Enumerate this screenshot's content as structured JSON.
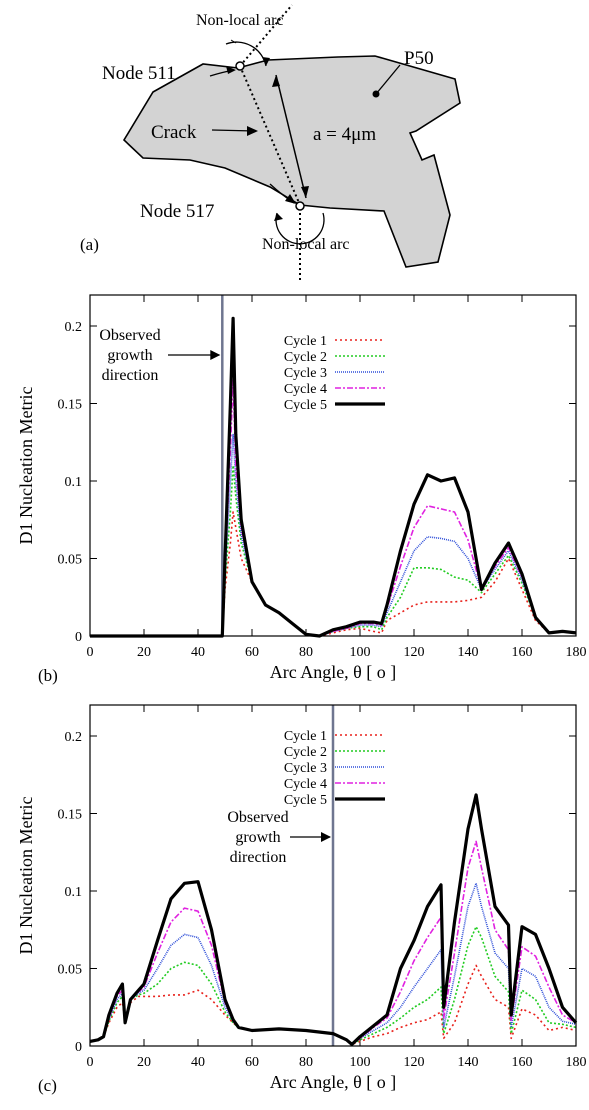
{
  "panel_a": {
    "label": "(a)",
    "node_top": "Node 511",
    "node_bottom": "Node 517",
    "arc_top": "Non-local arc",
    "arc_bottom": "Non-local arc",
    "crack": "Crack",
    "grain": "P50",
    "length": "a = 4μm"
  },
  "colors": {
    "cycle1": "#e8211b",
    "cycle2": "#22cc22",
    "cycle3": "#2f4fd8",
    "cycle4": "#e022e0",
    "cycle5": "#000000",
    "marker": "#6f7690",
    "grain_fill": "#d3d3d3"
  },
  "chart_data": [
    {
      "panel_label": "(b)",
      "type": "line",
      "xlabel": "Arc Angle, θ [ o ]",
      "ylabel": "D1 Nucleation Metric",
      "xlim": [
        0,
        180
      ],
      "ylim": [
        0,
        0.22
      ],
      "xticks": [
        "0",
        "20",
        "40",
        "60",
        "80",
        "100",
        "120",
        "140",
        "160",
        "180"
      ],
      "yticks": [
        "0",
        "0.05",
        "0.1",
        "0.15",
        "0.2"
      ],
      "annotation": [
        "Observed",
        "growth",
        "direction"
      ],
      "marker_x": 49,
      "legend": [
        "Cycle 1",
        "Cycle 2",
        "Cycle 3",
        "Cycle 4",
        "Cycle 5"
      ],
      "series": [
        {
          "name": "Cycle 1",
          "x": [
            0,
            49,
            50,
            52,
            53,
            54,
            56,
            60,
            65,
            70,
            75,
            80,
            85,
            90,
            95,
            100,
            105,
            108,
            110,
            115,
            120,
            125,
            130,
            135,
            140,
            145,
            150,
            155,
            160,
            165,
            170,
            175,
            180
          ],
          "y": [
            0,
            0,
            0.03,
            0.06,
            0.08,
            0.07,
            0.05,
            0.035,
            0.02,
            0.015,
            0.008,
            0.001,
            0,
            0.002,
            0.004,
            0.005,
            0.003,
            0.002,
            0.01,
            0.015,
            0.02,
            0.022,
            0.022,
            0.022,
            0.023,
            0.025,
            0.035,
            0.05,
            0.03,
            0.01,
            0.002,
            0.003,
            0.002
          ]
        },
        {
          "name": "Cycle 2",
          "x": [
            0,
            49,
            50,
            52,
            53,
            54,
            56,
            60,
            65,
            70,
            75,
            80,
            85,
            90,
            95,
            100,
            105,
            108,
            110,
            115,
            120,
            125,
            130,
            135,
            140,
            145,
            150,
            155,
            160,
            165,
            170,
            175,
            180
          ],
          "y": [
            0,
            0,
            0.035,
            0.08,
            0.11,
            0.09,
            0.06,
            0.035,
            0.02,
            0.015,
            0.008,
            0.001,
            0,
            0.003,
            0.005,
            0.006,
            0.006,
            0.004,
            0.012,
            0.025,
            0.044,
            0.044,
            0.043,
            0.038,
            0.036,
            0.028,
            0.04,
            0.052,
            0.034,
            0.012,
            0.002,
            0.003,
            0.002
          ]
        },
        {
          "name": "Cycle 3",
          "x": [
            0,
            49,
            50,
            52,
            53,
            54,
            56,
            60,
            65,
            70,
            75,
            80,
            85,
            90,
            95,
            100,
            105,
            108,
            110,
            115,
            120,
            125,
            130,
            135,
            140,
            145,
            150,
            155,
            160,
            165,
            170,
            175,
            180
          ],
          "y": [
            0,
            0,
            0.04,
            0.1,
            0.13,
            0.1,
            0.065,
            0.035,
            0.02,
            0.015,
            0.008,
            0.001,
            0,
            0.003,
            0.005,
            0.007,
            0.007,
            0.006,
            0.015,
            0.035,
            0.055,
            0.064,
            0.063,
            0.061,
            0.05,
            0.03,
            0.043,
            0.055,
            0.036,
            0.012,
            0.002,
            0.003,
            0.002
          ]
        },
        {
          "name": "Cycle 4",
          "x": [
            0,
            49,
            50,
            52,
            53,
            54,
            56,
            60,
            65,
            70,
            75,
            80,
            85,
            90,
            95,
            100,
            105,
            108,
            110,
            115,
            120,
            125,
            130,
            135,
            140,
            145,
            150,
            155,
            160,
            165,
            170,
            175,
            180
          ],
          "y": [
            0,
            0,
            0.045,
            0.12,
            0.165,
            0.11,
            0.07,
            0.035,
            0.02,
            0.015,
            0.008,
            0.001,
            0,
            0.003,
            0.005,
            0.008,
            0.008,
            0.007,
            0.018,
            0.045,
            0.07,
            0.084,
            0.082,
            0.08,
            0.062,
            0.03,
            0.045,
            0.057,
            0.038,
            0.012,
            0.002,
            0.003,
            0.002
          ]
        },
        {
          "name": "Cycle 5",
          "x": [
            0,
            49,
            50,
            52,
            53,
            54,
            56,
            60,
            65,
            70,
            75,
            80,
            85,
            90,
            95,
            100,
            105,
            108,
            110,
            115,
            120,
            125,
            130,
            135,
            140,
            145,
            150,
            155,
            160,
            165,
            170,
            175,
            180
          ],
          "y": [
            0,
            0,
            0.05,
            0.15,
            0.205,
            0.13,
            0.075,
            0.035,
            0.02,
            0.015,
            0.008,
            0.001,
            0,
            0.004,
            0.006,
            0.009,
            0.009,
            0.008,
            0.02,
            0.055,
            0.085,
            0.104,
            0.1,
            0.102,
            0.08,
            0.03,
            0.047,
            0.06,
            0.04,
            0.012,
            0.002,
            0.003,
            0.002
          ]
        }
      ]
    },
    {
      "panel_label": "(c)",
      "type": "line",
      "xlabel": "Arc Angle, θ [ o ]",
      "ylabel": "D1 Nucleation Metric",
      "xlim": [
        0,
        180
      ],
      "ylim": [
        0,
        0.22
      ],
      "xticks": [
        "0",
        "20",
        "40",
        "60",
        "80",
        "100",
        "120",
        "140",
        "160",
        "180"
      ],
      "yticks": [
        "0",
        "0.05",
        "0.1",
        "0.15",
        "0.2"
      ],
      "annotation": [
        "Observed",
        "growth",
        "direction"
      ],
      "marker_x": 90,
      "legend": [
        "Cycle 1",
        "Cycle 2",
        "Cycle 3",
        "Cycle 4",
        "Cycle 5"
      ],
      "series": [
        {
          "name": "Cycle 1",
          "x": [
            0,
            3,
            5,
            7,
            10,
            12,
            13,
            15,
            18,
            20,
            25,
            30,
            35,
            40,
            45,
            50,
            53,
            55,
            60,
            70,
            80,
            90,
            95,
            97,
            100,
            105,
            110,
            115,
            120,
            125,
            130,
            131,
            135,
            140,
            143,
            145,
            150,
            155,
            156,
            160,
            165,
            170,
            175,
            180
          ],
          "y": [
            0.003,
            0.004,
            0.006,
            0.015,
            0.025,
            0.028,
            0.015,
            0.028,
            0.032,
            0.032,
            0.032,
            0.033,
            0.033,
            0.036,
            0.03,
            0.02,
            0.015,
            0.012,
            0.01,
            0.011,
            0.01,
            0.008,
            0.004,
            0.001,
            0.003,
            0.006,
            0.008,
            0.012,
            0.015,
            0.017,
            0.022,
            0.005,
            0.015,
            0.04,
            0.052,
            0.045,
            0.03,
            0.025,
            0.005,
            0.024,
            0.02,
            0.01,
            0.012,
            0.01
          ]
        },
        {
          "name": "Cycle 2",
          "x": [
            0,
            3,
            5,
            7,
            10,
            12,
            13,
            15,
            18,
            20,
            25,
            30,
            35,
            40,
            45,
            50,
            53,
            55,
            60,
            70,
            80,
            90,
            95,
            97,
            100,
            105,
            110,
            115,
            120,
            125,
            130,
            131,
            135,
            140,
            143,
            145,
            150,
            155,
            156,
            160,
            165,
            170,
            175,
            180
          ],
          "y": [
            0.003,
            0.004,
            0.006,
            0.016,
            0.028,
            0.032,
            0.015,
            0.03,
            0.033,
            0.034,
            0.04,
            0.05,
            0.054,
            0.052,
            0.04,
            0.022,
            0.015,
            0.012,
            0.01,
            0.011,
            0.01,
            0.008,
            0.004,
            0.001,
            0.004,
            0.008,
            0.012,
            0.018,
            0.025,
            0.03,
            0.038,
            0.008,
            0.03,
            0.065,
            0.077,
            0.07,
            0.045,
            0.035,
            0.008,
            0.036,
            0.03,
            0.015,
            0.014,
            0.012
          ]
        },
        {
          "name": "Cycle 3",
          "x": [
            0,
            3,
            5,
            7,
            10,
            12,
            13,
            15,
            18,
            20,
            25,
            30,
            35,
            40,
            45,
            50,
            53,
            55,
            60,
            70,
            80,
            90,
            95,
            97,
            100,
            105,
            110,
            115,
            120,
            125,
            130,
            131,
            135,
            140,
            143,
            145,
            150,
            155,
            156,
            160,
            165,
            170,
            175,
            180
          ],
          "y": [
            0.003,
            0.004,
            0.006,
            0.017,
            0.03,
            0.034,
            0.015,
            0.03,
            0.034,
            0.036,
            0.05,
            0.065,
            0.072,
            0.07,
            0.052,
            0.025,
            0.016,
            0.012,
            0.01,
            0.011,
            0.01,
            0.008,
            0.004,
            0.001,
            0.005,
            0.01,
            0.015,
            0.025,
            0.038,
            0.05,
            0.062,
            0.012,
            0.045,
            0.09,
            0.105,
            0.09,
            0.06,
            0.05,
            0.012,
            0.05,
            0.045,
            0.025,
            0.016,
            0.014
          ]
        },
        {
          "name": "Cycle 4",
          "x": [
            0,
            3,
            5,
            7,
            10,
            12,
            13,
            15,
            18,
            20,
            25,
            30,
            35,
            40,
            45,
            50,
            53,
            55,
            60,
            70,
            80,
            90,
            95,
            97,
            100,
            105,
            110,
            115,
            120,
            125,
            130,
            131,
            135,
            140,
            143,
            145,
            150,
            155,
            156,
            160,
            165,
            170,
            175,
            180
          ],
          "y": [
            0.003,
            0.004,
            0.006,
            0.018,
            0.032,
            0.036,
            0.015,
            0.03,
            0.035,
            0.038,
            0.06,
            0.08,
            0.089,
            0.087,
            0.065,
            0.028,
            0.016,
            0.012,
            0.01,
            0.011,
            0.01,
            0.008,
            0.004,
            0.001,
            0.005,
            0.012,
            0.018,
            0.035,
            0.055,
            0.07,
            0.083,
            0.018,
            0.06,
            0.115,
            0.132,
            0.115,
            0.075,
            0.062,
            0.016,
            0.064,
            0.058,
            0.038,
            0.02,
            0.015
          ]
        },
        {
          "name": "Cycle 5",
          "x": [
            0,
            3,
            5,
            7,
            10,
            12,
            13,
            15,
            18,
            20,
            25,
            30,
            35,
            40,
            45,
            50,
            53,
            55,
            60,
            70,
            80,
            90,
            95,
            97,
            100,
            105,
            110,
            115,
            120,
            125,
            130,
            131,
            135,
            140,
            143,
            145,
            150,
            155,
            156,
            160,
            165,
            170,
            175,
            180
          ],
          "y": [
            0.003,
            0.004,
            0.006,
            0.02,
            0.034,
            0.04,
            0.015,
            0.03,
            0.036,
            0.04,
            0.068,
            0.095,
            0.105,
            0.106,
            0.075,
            0.03,
            0.017,
            0.012,
            0.01,
            0.011,
            0.01,
            0.008,
            0.004,
            0.001,
            0.006,
            0.013,
            0.02,
            0.05,
            0.068,
            0.09,
            0.104,
            0.025,
            0.08,
            0.14,
            0.162,
            0.14,
            0.09,
            0.078,
            0.02,
            0.077,
            0.072,
            0.05,
            0.025,
            0.015
          ]
        }
      ]
    }
  ]
}
